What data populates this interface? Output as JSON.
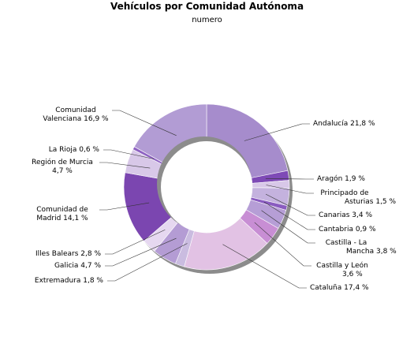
{
  "chart_data": {
    "type": "pie",
    "style": "donut",
    "title": "Vehículos por Comunidad Autónoma",
    "subtitle": "numero",
    "slices": [
      {
        "name": "Andalucía",
        "value": 21.8,
        "label": "Andalucía 21,8 %",
        "color": "#a68ccc"
      },
      {
        "name": "Aragón",
        "value": 1.9,
        "label": "Aragón 1,9 %",
        "color": "#7e4ab6"
      },
      {
        "name": "Principado de Asturias",
        "value": 1.5,
        "label": "Principado de Asturias 1,5 %",
        "color": "#d8c8e8"
      },
      {
        "name": "Canarias",
        "value": 3.4,
        "label": "Canarias 3,4 %",
        "color": "#c4b2de"
      },
      {
        "name": "Cantabria",
        "value": 0.9,
        "label": "Cantabria 0,9 %",
        "color": "#8a5cc0"
      },
      {
        "name": "Castilla - La Mancha",
        "value": 3.8,
        "label": "Castilla - La Mancha 3,8 %",
        "color": "#b69ed6"
      },
      {
        "name": "Castilla y León",
        "value": 3.6,
        "label": "Castilla y León 3,6 %",
        "color": "#c88ed4"
      },
      {
        "name": "Cataluña",
        "value": 17.4,
        "label": "Cataluña 17,4 %",
        "color": "#e2c2e4"
      },
      {
        "name": "Extremadura",
        "value": 1.8,
        "label": "Extremadura 1,8 %",
        "color": "#cabce0"
      },
      {
        "name": "Galicia",
        "value": 4.7,
        "label": "Galicia 4,7 %",
        "color": "#b49cd4"
      },
      {
        "name": "Illes Balears",
        "value": 2.8,
        "label": "Illes Balears 2,8 %",
        "color": "#e6d8f0"
      },
      {
        "name": "Comunidad de Madrid",
        "value": 14.1,
        "label": "Comunidad de Madrid 14,1 %",
        "color": "#7b46b0"
      },
      {
        "name": "Región de Murcia",
        "value": 4.7,
        "label": "Región de Murcia 4,7 %",
        "color": "#d8c8e8"
      },
      {
        "name": "La Rioja",
        "value": 0.6,
        "label": "La Rioja 0,6 %",
        "color": "#8e62c2"
      },
      {
        "name": "Comunidad Valenciana",
        "value": 16.9,
        "label": "Comunidad Valenciana 16,9 %",
        "color": "#b29cd4"
      }
    ],
    "legend": "none"
  }
}
